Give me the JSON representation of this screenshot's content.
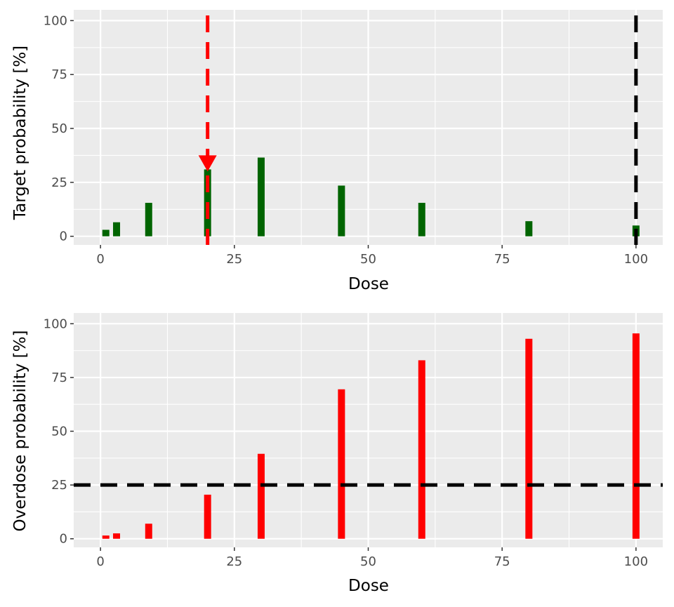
{
  "chart_data": [
    {
      "type": "bar",
      "xlabel": "Dose",
      "ylabel": "Target probability [%]",
      "xlim": [
        -5,
        105
      ],
      "ylim": [
        -4,
        105
      ],
      "x_ticks": [
        0,
        25,
        50,
        75,
        100
      ],
      "y_ticks": [
        0,
        25,
        50,
        75,
        100
      ],
      "grid": true,
      "bar_color": "#006400",
      "x": [
        1,
        3,
        9,
        20,
        30,
        45,
        60,
        80,
        100
      ],
      "values": [
        3,
        6.5,
        15.5,
        31,
        36.5,
        23.5,
        15.5,
        7,
        5
      ],
      "reference_lines": [
        {
          "orientation": "vertical",
          "value": 20,
          "color": "#ff0000",
          "style": "dashed"
        },
        {
          "orientation": "vertical",
          "value": 100,
          "color": "#000000",
          "style": "dashed"
        }
      ],
      "marker": {
        "shape": "down-triangle",
        "x": 20,
        "y": 31,
        "color": "#ff0000"
      }
    },
    {
      "type": "bar",
      "xlabel": "Dose",
      "ylabel": "Overdose probability [%]",
      "xlim": [
        -5,
        105
      ],
      "ylim": [
        -4,
        105
      ],
      "x_ticks": [
        0,
        25,
        50,
        75,
        100
      ],
      "y_ticks": [
        0,
        25,
        50,
        75,
        100
      ],
      "grid": true,
      "bar_color": "#ff0000",
      "x": [
        1,
        3,
        9,
        20,
        30,
        45,
        60,
        80,
        100
      ],
      "values": [
        1.5,
        2.5,
        7,
        20.5,
        39.5,
        69.5,
        83,
        93,
        95.5
      ],
      "reference_lines": [
        {
          "orientation": "horizontal",
          "value": 25,
          "color": "#000000",
          "style": "dashed"
        }
      ]
    }
  ]
}
